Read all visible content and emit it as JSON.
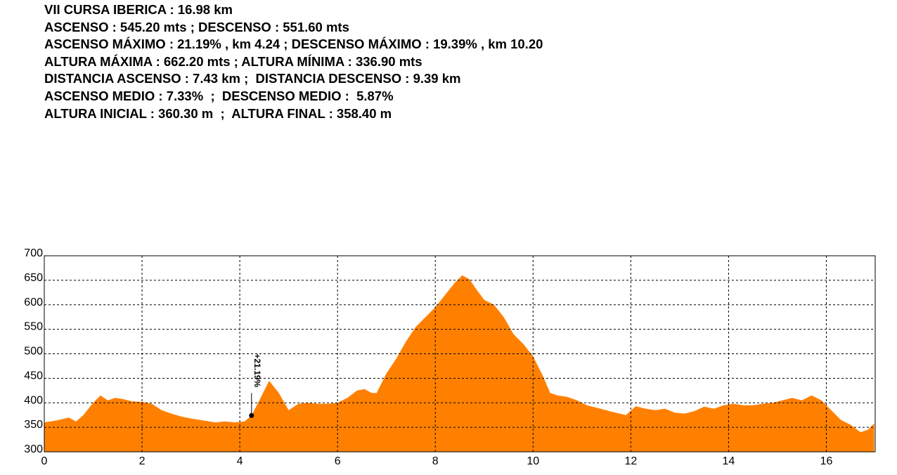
{
  "stats": [
    "VII CURSA IBERICA : 16.98 km",
    "ASCENSO : 545.20 mts ; DESCENSO : 551.60 mts",
    "ASCENSO MÁXIMO : 21.19% , km 4.24 ; DESCENSO MÁXIMO : 19.39% , km 10.20",
    "ALTURA MÁXIMA : 662.20 mts ; ALTURA MÍNIMA : 336.90 mts",
    "DISTANCIA ASCENSO : 7.43 km ;  DISTANCIA DESCENSO : 9.39 km",
    "ASCENSO MEDIO : 7.33%  ;  DESCENSO MEDIO :  5.87%",
    "ALTURA INICIAL : 360.30 m  ;  ALTURA FINAL : 358.40 m"
  ],
  "colors": {
    "fill": "#ff8000",
    "grid": "#000000"
  },
  "chart_data": {
    "type": "area",
    "xlim": [
      0,
      17
    ],
    "ylim": [
      300,
      700
    ],
    "xticks": [
      0,
      2,
      4,
      6,
      8,
      10,
      12,
      14,
      16
    ],
    "yticks": [
      300,
      350,
      400,
      450,
      500,
      550,
      600,
      650,
      700
    ],
    "grid": true,
    "x": [
      0,
      0.25,
      0.5,
      0.65,
      0.8,
      1.0,
      1.15,
      1.3,
      1.45,
      1.6,
      1.8,
      2.0,
      2.2,
      2.4,
      2.6,
      2.8,
      3.0,
      3.2,
      3.5,
      3.7,
      3.9,
      4.1,
      4.24,
      4.4,
      4.6,
      4.8,
      5.0,
      5.2,
      5.4,
      5.6,
      5.8,
      6.0,
      6.2,
      6.4,
      6.55,
      6.7,
      6.8,
      7.0,
      7.2,
      7.4,
      7.6,
      7.8,
      8.0,
      8.2,
      8.4,
      8.55,
      8.7,
      8.85,
      9.0,
      9.2,
      9.4,
      9.6,
      9.8,
      10.0,
      10.2,
      10.35,
      10.5,
      10.7,
      10.9,
      11.1,
      11.3,
      11.6,
      11.9,
      12.1,
      12.3,
      12.5,
      12.7,
      12.9,
      13.1,
      13.3,
      13.5,
      13.7,
      13.9,
      14.1,
      14.3,
      14.5,
      14.7,
      14.9,
      15.1,
      15.3,
      15.5,
      15.7,
      15.9,
      16.1,
      16.3,
      16.5,
      16.7,
      16.85,
      16.98
    ],
    "y": [
      360,
      364,
      370,
      362,
      375,
      400,
      415,
      405,
      410,
      408,
      403,
      402,
      398,
      385,
      378,
      372,
      368,
      365,
      360,
      362,
      360,
      362,
      374,
      405,
      445,
      420,
      385,
      398,
      400,
      398,
      398,
      400,
      410,
      425,
      428,
      420,
      420,
      460,
      490,
      525,
      555,
      575,
      595,
      620,
      645,
      660,
      652,
      630,
      610,
      600,
      575,
      540,
      520,
      495,
      455,
      420,
      415,
      412,
      405,
      395,
      390,
      382,
      375,
      393,
      388,
      385,
      388,
      380,
      378,
      383,
      392,
      388,
      395,
      398,
      395,
      395,
      398,
      400,
      405,
      410,
      405,
      415,
      405,
      385,
      365,
      355,
      340,
      345,
      358
    ],
    "annotations": [
      {
        "x": 4.24,
        "y": 374,
        "text": "+21.19%"
      }
    ]
  }
}
